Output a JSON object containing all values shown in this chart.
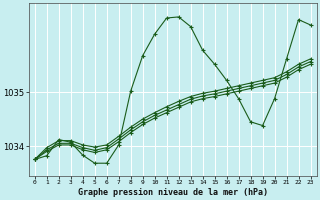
{
  "title": "Graphe pression niveau de la mer (hPa)",
  "background_color": "#c8eef0",
  "grid_color": "#ffffff",
  "line_color": "#1a5c1a",
  "xlim": [
    -0.5,
    23.5
  ],
  "ylim": [
    1033.45,
    1036.65
  ],
  "yticks": [
    1034,
    1035
  ],
  "xtick_labels": [
    "0",
    "1",
    "2",
    "3",
    "4",
    "5",
    "6",
    "7",
    "8",
    "9",
    "10",
    "11",
    "12",
    "13",
    "14",
    "15",
    "16",
    "17",
    "18",
    "19",
    "20",
    "21",
    "22",
    "23"
  ],
  "series_main": [
    1033.75,
    1033.82,
    1034.12,
    1034.07,
    1033.83,
    1033.68,
    1033.68,
    1034.02,
    1035.02,
    1035.68,
    1036.08,
    1036.38,
    1036.4,
    1036.22,
    1035.78,
    1035.52,
    1035.22,
    1034.88,
    1034.45,
    1034.38,
    1034.88,
    1035.62,
    1036.35,
    1036.25
  ],
  "series_linear1": [
    1033.75,
    1033.97,
    1034.1,
    1034.1,
    1034.02,
    1033.98,
    1034.02,
    1034.18,
    1034.35,
    1034.5,
    1034.62,
    1034.73,
    1034.83,
    1034.92,
    1034.98,
    1035.02,
    1035.07,
    1035.12,
    1035.17,
    1035.22,
    1035.27,
    1035.38,
    1035.52,
    1035.62
  ],
  "series_linear2": [
    1033.75,
    1033.9,
    1034.02,
    1034.02,
    1033.93,
    1033.88,
    1033.93,
    1034.08,
    1034.25,
    1034.4,
    1034.52,
    1034.62,
    1034.72,
    1034.82,
    1034.88,
    1034.92,
    1034.97,
    1035.02,
    1035.07,
    1035.12,
    1035.17,
    1035.28,
    1035.42,
    1035.52
  ],
  "series_linear3": [
    1033.75,
    1033.93,
    1034.05,
    1034.05,
    1033.97,
    1033.92,
    1033.97,
    1034.13,
    1034.3,
    1034.45,
    1034.57,
    1034.67,
    1034.77,
    1034.87,
    1034.93,
    1034.97,
    1035.02,
    1035.07,
    1035.12,
    1035.17,
    1035.22,
    1035.33,
    1035.47,
    1035.57
  ]
}
